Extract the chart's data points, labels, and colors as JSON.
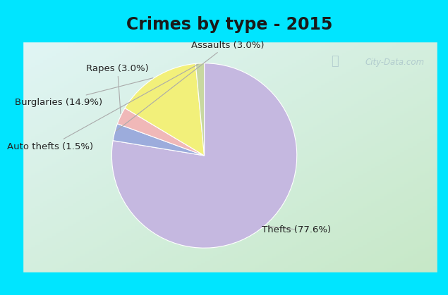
{
  "title": "Crimes by type - 2015",
  "labels": [
    "Thefts",
    "Burglaries",
    "Auto thefts",
    "Rapes",
    "Assaults"
  ],
  "values": [
    77.6,
    14.9,
    1.5,
    3.0,
    3.0
  ],
  "colors": [
    "#c5b8e0",
    "#f2f07a",
    "#c8d8a0",
    "#f0b8b8",
    "#9cacdc"
  ],
  "label_texts": [
    "Thefts (77.6%)",
    "Burglaries (14.9%)",
    "Auto thefts (1.5%)",
    "Rapes (3.0%)",
    "Assaults (3.0%)"
  ],
  "title_fontsize": 17,
  "label_fontsize": 9.5,
  "cyan_bar_color": "#00e5ff",
  "bg_main": "#d4edd8",
  "bg_top_right": "#e8f4f4",
  "startangle": 90
}
